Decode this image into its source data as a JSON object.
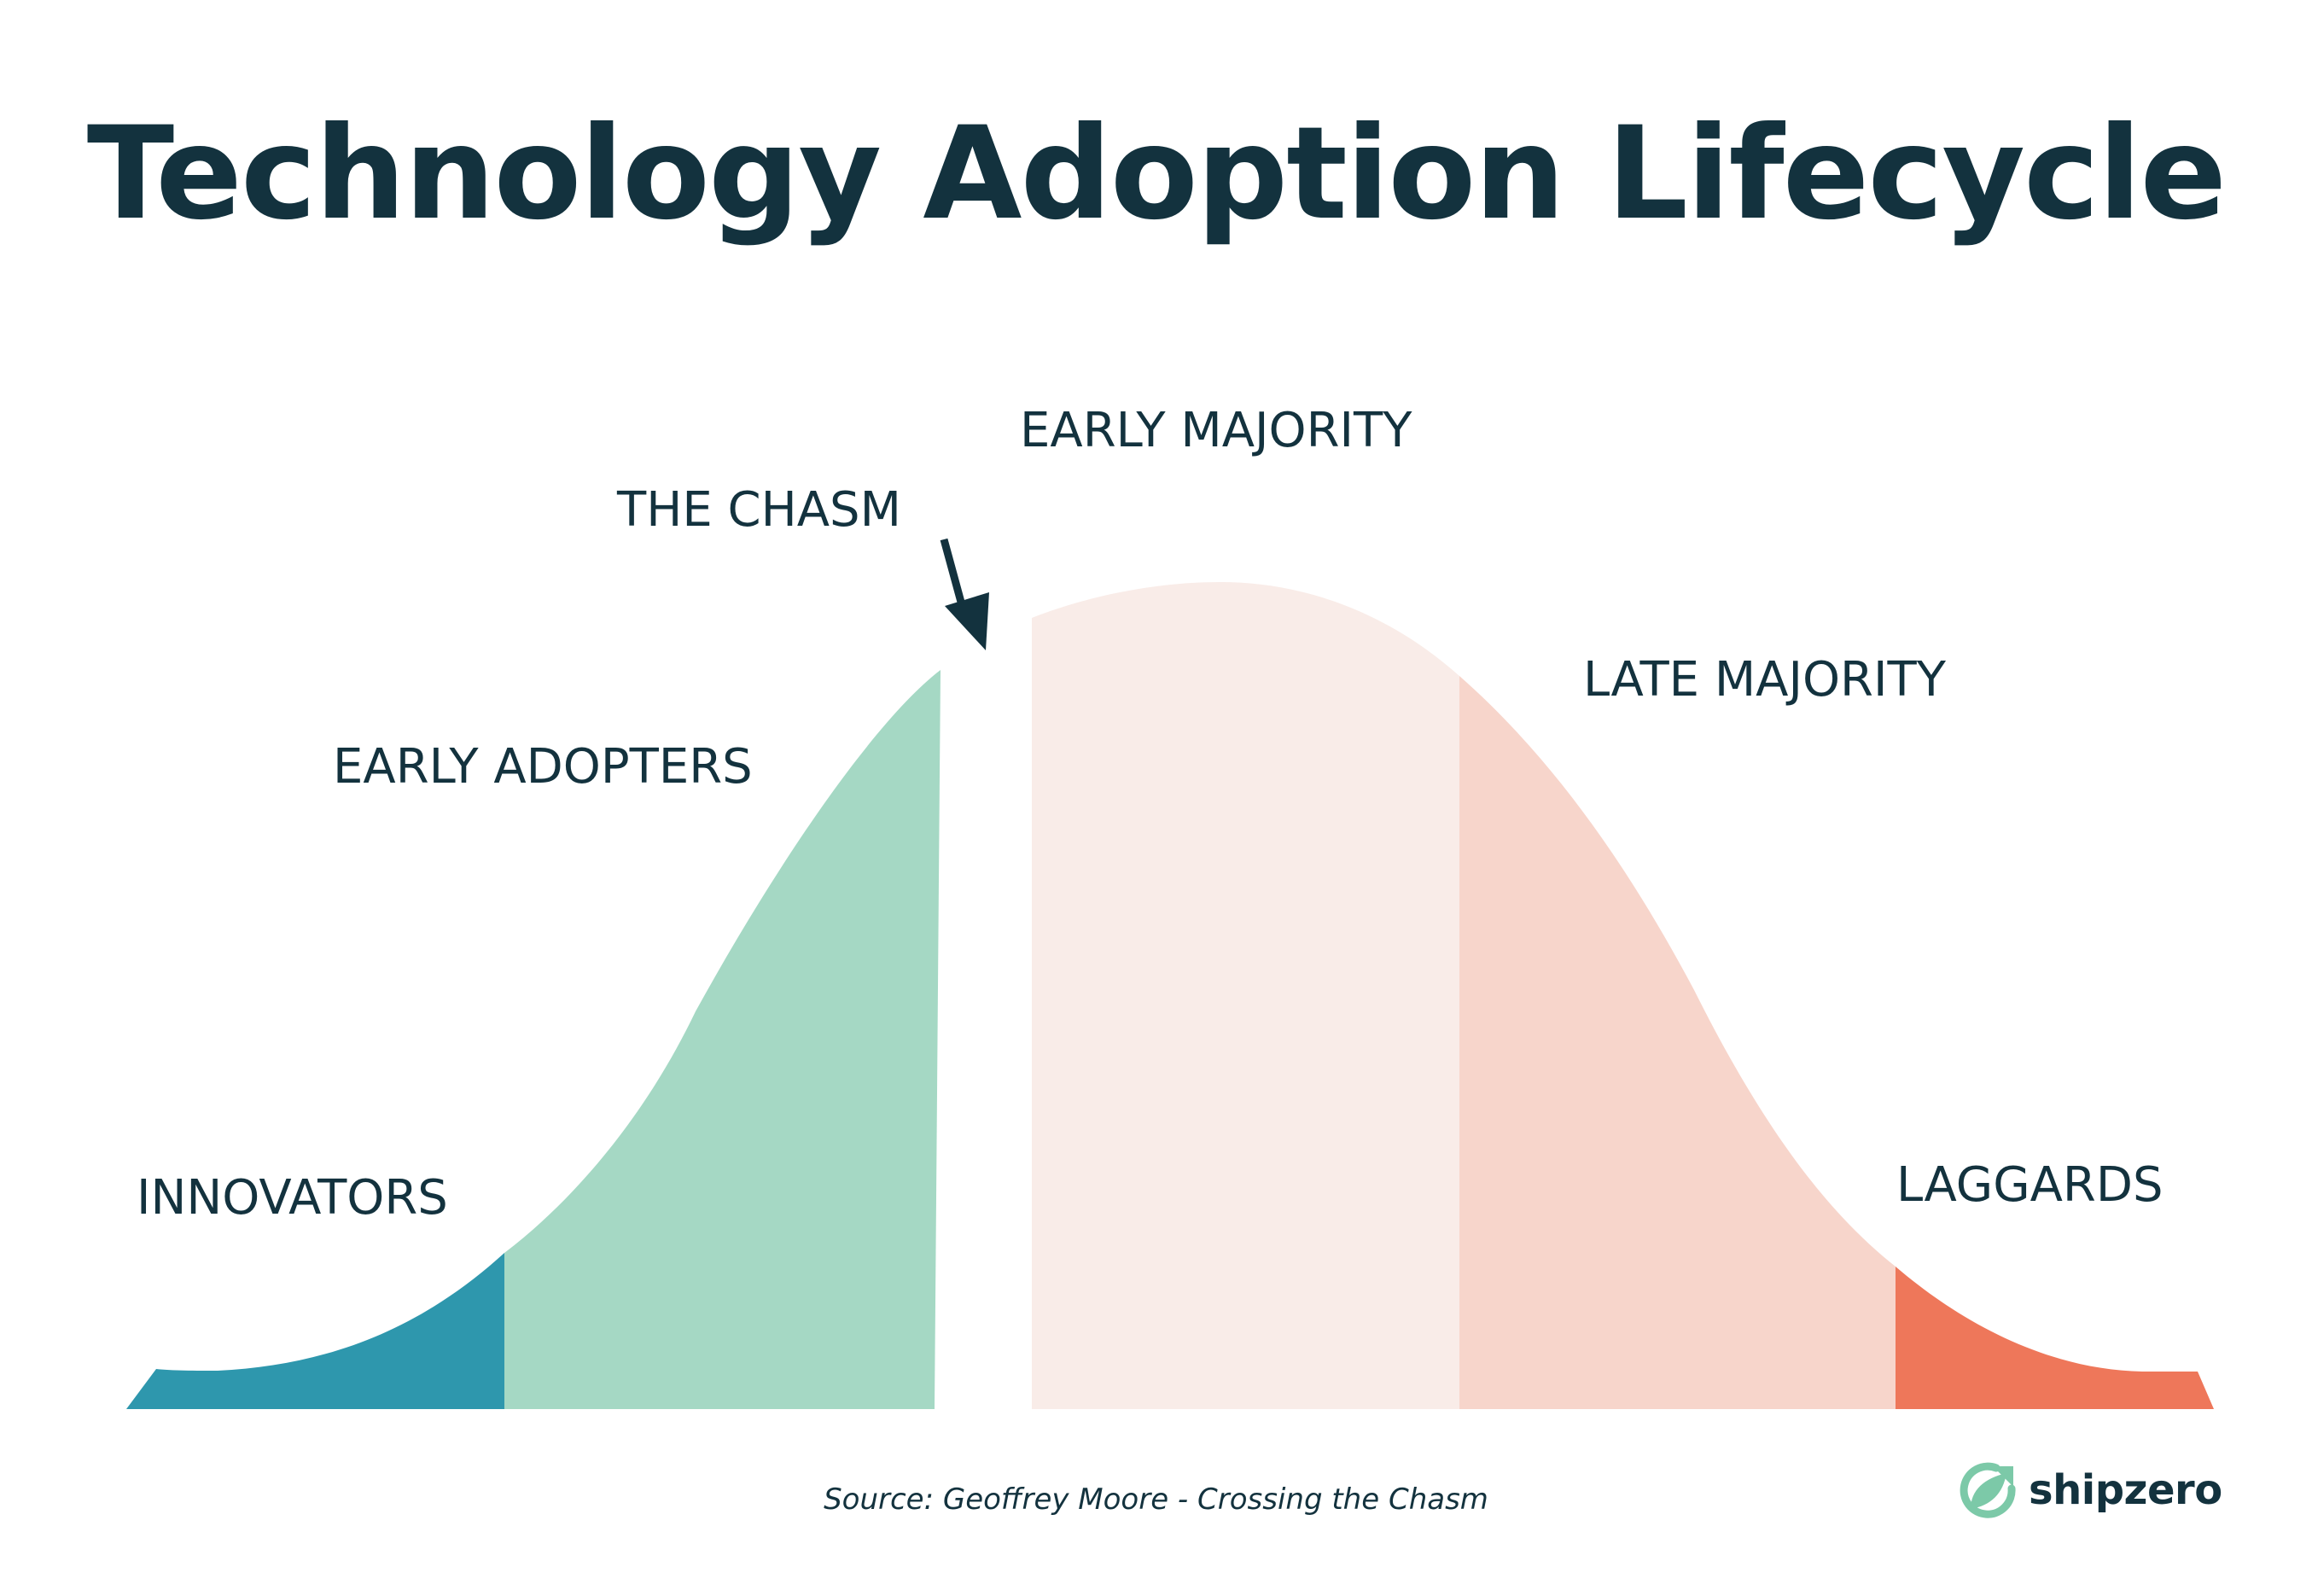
{
  "title": "Technology Adoption Lifecycle",
  "segments": [
    {
      "id": "innovators",
      "label": "INNOVATORS",
      "color": "#2e97ad"
    },
    {
      "id": "early_adopters",
      "label": "EARLY ADOPTERS",
      "color": "#a5d8c4"
    },
    {
      "id": "chasm",
      "label": "THE CHASM",
      "color": "#13323e"
    },
    {
      "id": "early_majority",
      "label": "EARLY MAJORITY",
      "color": "#f9ece8"
    },
    {
      "id": "late_majority",
      "label": "LATE MAJORITY",
      "color": "#f7d5cb"
    },
    {
      "id": "laggards",
      "label": "LAGGARDS",
      "color": "#ee775a"
    }
  ],
  "source": "Source: Geoffrey Moore - Crossing the Chasm",
  "brand": {
    "name": "shipzero",
    "icon": "leaf-arrow-icon",
    "icon_color": "#7cc9a8"
  },
  "colors": {
    "text": "#13323e",
    "background": "#ffffff"
  }
}
